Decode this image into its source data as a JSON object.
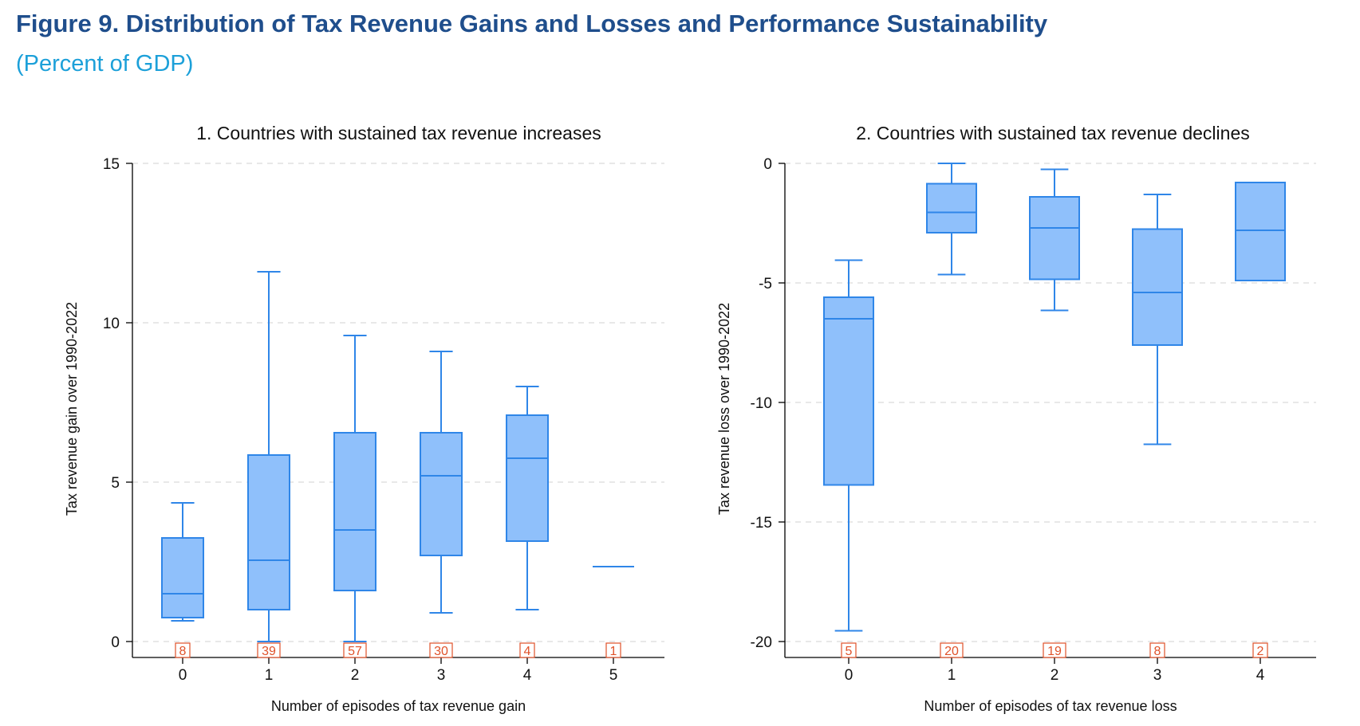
{
  "figure": {
    "title": "Figure 9. Distribution of Tax Revenue Gains and Losses and Performance Sustainability",
    "subtitle": "(Percent of GDP)"
  },
  "chart_data": [
    {
      "type": "box",
      "title": "1. Countries with sustained tax revenue increases",
      "xlabel": "Number of episodes of tax revenue gain",
      "ylabel": "Tax revenue gain over 1990-2022",
      "ylim": [
        0,
        15
      ],
      "yticks": [
        0,
        5,
        10,
        15
      ],
      "grid": true,
      "categories": [
        "0",
        "1",
        "2",
        "3",
        "4",
        "5"
      ],
      "boxes": [
        {
          "category": "0",
          "lower_whisker": 0.65,
          "q1": 0.75,
          "median": 1.5,
          "q3": 3.25,
          "upper_whisker": 4.35,
          "n": "8"
        },
        {
          "category": "1",
          "lower_whisker": 0.0,
          "q1": 1.0,
          "median": 2.55,
          "q3": 5.85,
          "upper_whisker": 11.6,
          "n": "39"
        },
        {
          "category": "2",
          "lower_whisker": 0.0,
          "q1": 1.6,
          "median": 3.5,
          "q3": 6.55,
          "upper_whisker": 9.6,
          "n": "57"
        },
        {
          "category": "3",
          "lower_whisker": 0.9,
          "q1": 2.7,
          "median": 5.2,
          "q3": 6.55,
          "upper_whisker": 9.1,
          "n": "30"
        },
        {
          "category": "4",
          "lower_whisker": 1.0,
          "q1": 3.15,
          "median": 5.75,
          "q3": 7.1,
          "upper_whisker": 8.0,
          "n": "4"
        },
        {
          "category": "5",
          "lower_whisker": 2.35,
          "q1": 2.35,
          "median": 2.35,
          "q3": 2.35,
          "upper_whisker": 2.35,
          "n": "1"
        }
      ]
    },
    {
      "type": "box",
      "title": "2. Countries with sustained tax revenue declines",
      "xlabel": "Number of episodes of tax revenue loss",
      "ylabel": "Tax revenue loss over 1990-2022",
      "ylim": [
        -20,
        0
      ],
      "yticks": [
        0,
        -5,
        -10,
        -15,
        -20
      ],
      "grid": true,
      "categories": [
        "0",
        "1",
        "2",
        "3",
        "4"
      ],
      "boxes": [
        {
          "category": "0",
          "lower_whisker": -19.55,
          "q1": -13.45,
          "median": -6.5,
          "q3": -5.6,
          "upper_whisker": -4.05,
          "n": "5"
        },
        {
          "category": "1",
          "lower_whisker": -4.65,
          "q1": -2.9,
          "median": -2.05,
          "q3": -0.85,
          "upper_whisker": 0.0,
          "n": "20"
        },
        {
          "category": "2",
          "lower_whisker": -6.15,
          "q1": -4.85,
          "median": -2.7,
          "q3": -1.4,
          "upper_whisker": -0.25,
          "n": "19"
        },
        {
          "category": "3",
          "lower_whisker": -11.75,
          "q1": -7.6,
          "median": -5.4,
          "q3": -2.75,
          "upper_whisker": -1.3,
          "n": "8"
        },
        {
          "category": "4",
          "lower_whisker": -4.9,
          "q1": -4.9,
          "median": -2.8,
          "q3": -0.8,
          "upper_whisker": -0.8,
          "n": "2"
        }
      ]
    }
  ],
  "colors": {
    "title": "#1f4e8c",
    "subtitle": "#1ca0d9",
    "box_fill": "#8fc0fb",
    "box_stroke": "#2f86e8",
    "count_label": "#e0522a",
    "grid": "#d9d9d9",
    "axis": "#000000"
  }
}
